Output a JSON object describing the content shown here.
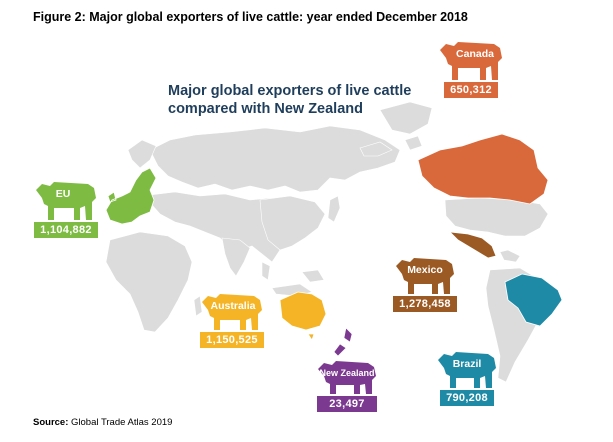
{
  "figure_title": "Figure 2: Major global exporters of live cattle: year ended December 2018",
  "map_title": {
    "line1": "Major global exporters of live cattle",
    "line2": "compared with New Zealand"
  },
  "source": {
    "label": "Source:",
    "text": " Global Trade Atlas 2019"
  },
  "colors": {
    "land": "#dcdcdc",
    "title": "#1f3e5c",
    "eu": "#7dbb42",
    "canada": "#d9683a",
    "mexico": "#9b5a23",
    "australia": "#f4b425",
    "brazil": "#1e8aa6",
    "new_zealand": "#7b3a90"
  },
  "exporters": [
    {
      "id": "canada",
      "country": "Canada",
      "value": "650,312",
      "color": "#d9683a",
      "icon": "cow-icon"
    },
    {
      "id": "eu",
      "country": "EU",
      "value": "1,104,882",
      "color": "#7dbb42",
      "icon": "cow-icon"
    },
    {
      "id": "mexico",
      "country": "Mexico",
      "value": "1,278,458",
      "color": "#9b5a23",
      "icon": "cow-icon"
    },
    {
      "id": "australia",
      "country": "Australia",
      "value": "1,150,525",
      "color": "#f4b425",
      "icon": "cow-icon"
    },
    {
      "id": "new_zealand",
      "country": "New Zealand",
      "value": "23,497",
      "color": "#7b3a90",
      "icon": "cow-icon"
    },
    {
      "id": "brazil",
      "country": "Brazil",
      "value": "790,208",
      "color": "#1e8aa6",
      "icon": "cow-icon"
    }
  ]
}
